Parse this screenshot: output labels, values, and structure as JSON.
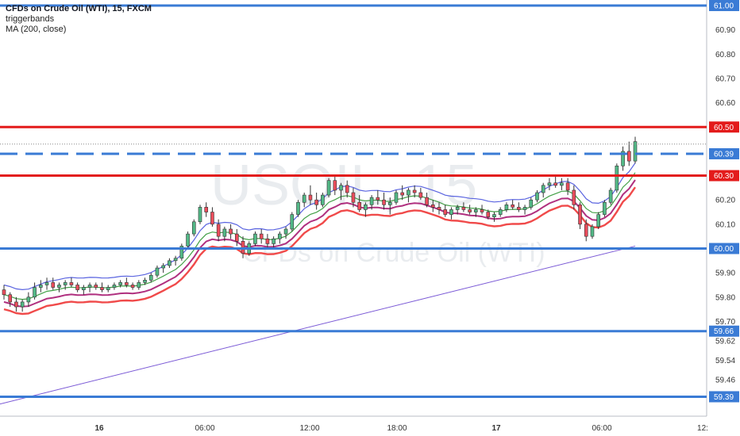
{
  "legend": {
    "title": "CFDs on Crude Oil (WTI), 15, FXCM",
    "line2": "triggerbands",
    "line3": "MA (200, close)"
  },
  "watermark": {
    "symbol": "USOIL, 15",
    "name": "CFDs on Crude Oil (WTI)"
  },
  "colors": {
    "up": "#53b987",
    "down": "#eb4d5c",
    "support": "#3a7bd5",
    "resistance": "#e31b1b",
    "ma200": "#7b5ad6",
    "band_blue": "#5a64e0",
    "band_green": "#43a047",
    "band_magenta": "#b0307f",
    "band_red": "#f04a4a"
  },
  "chart_data": {
    "type": "candlestick",
    "title": "CFDs on Crude Oil (WTI), 15, FXCM",
    "y_ticks": [
      "60.90",
      "60.80",
      "60.70",
      "60.60",
      "60.20",
      "60.10",
      "59.90",
      "59.80",
      "59.70",
      "59.62",
      "59.54",
      "59.46"
    ],
    "x_ticks": [
      "16",
      "06:00",
      "12:00",
      "18:00",
      "17",
      "06:00",
      "12:"
    ],
    "levels": [
      {
        "label": "61.00",
        "style": "solid",
        "color": "blue"
      },
      {
        "label": "60.50",
        "style": "solid",
        "color": "red"
      },
      {
        "label": "60.39",
        "style": "dashed",
        "color": "blue"
      },
      {
        "label": "60.30",
        "style": "solid",
        "color": "red"
      },
      {
        "label": "60.00",
        "style": "solid",
        "color": "blue"
      },
      {
        "label": "59.66",
        "style": "solid",
        "color": "blue"
      },
      {
        "label": "59.39",
        "style": "solid",
        "color": "blue"
      }
    ],
    "candles": [
      [
        59.83,
        59.85,
        59.79,
        59.81
      ],
      [
        59.81,
        59.82,
        59.76,
        59.78
      ],
      [
        59.78,
        59.8,
        59.74,
        59.76
      ],
      [
        59.76,
        59.79,
        59.74,
        59.78
      ],
      [
        59.78,
        59.82,
        59.76,
        59.8
      ],
      [
        59.8,
        59.86,
        59.79,
        59.84
      ],
      [
        59.84,
        59.87,
        59.82,
        59.85
      ],
      [
        59.85,
        59.88,
        59.83,
        59.86
      ],
      [
        59.86,
        59.88,
        59.83,
        59.84
      ],
      [
        59.84,
        59.86,
        59.82,
        59.85
      ],
      [
        59.85,
        59.87,
        59.83,
        59.86
      ],
      [
        59.86,
        59.88,
        59.84,
        59.85
      ],
      [
        59.85,
        59.86,
        59.82,
        59.83
      ],
      [
        59.83,
        59.85,
        59.81,
        59.84
      ],
      [
        59.84,
        59.86,
        59.82,
        59.85
      ],
      [
        59.85,
        59.86,
        59.83,
        59.84
      ],
      [
        59.84,
        59.86,
        59.82,
        59.83
      ],
      [
        59.83,
        59.85,
        59.82,
        59.84
      ],
      [
        59.84,
        59.86,
        59.83,
        59.85
      ],
      [
        59.85,
        59.87,
        59.84,
        59.86
      ],
      [
        59.86,
        59.88,
        59.84,
        59.85
      ],
      [
        59.85,
        59.86,
        59.83,
        59.84
      ],
      [
        59.84,
        59.87,
        59.83,
        59.86
      ],
      [
        59.86,
        59.88,
        59.85,
        59.87
      ],
      [
        59.87,
        59.9,
        59.86,
        59.89
      ],
      [
        59.89,
        59.93,
        59.88,
        59.92
      ],
      [
        59.92,
        59.94,
        59.9,
        59.93
      ],
      [
        59.93,
        59.96,
        59.92,
        59.95
      ],
      [
        59.95,
        59.97,
        59.93,
        59.96
      ],
      [
        59.96,
        60.02,
        59.95,
        60.01
      ],
      [
        60.01,
        60.07,
        60.0,
        60.06
      ],
      [
        60.06,
        60.12,
        60.05,
        60.11
      ],
      [
        60.11,
        60.18,
        60.1,
        60.17
      ],
      [
        60.17,
        60.19,
        60.13,
        60.15
      ],
      [
        60.15,
        60.17,
        60.09,
        60.1
      ],
      [
        60.1,
        60.12,
        60.03,
        60.05
      ],
      [
        60.05,
        60.09,
        60.03,
        60.08
      ],
      [
        60.08,
        60.1,
        60.04,
        60.06
      ],
      [
        60.06,
        60.08,
        60.01,
        60.03
      ],
      [
        60.03,
        60.05,
        59.96,
        59.98
      ],
      [
        59.98,
        60.03,
        59.97,
        60.02
      ],
      [
        60.02,
        60.07,
        60.01,
        60.06
      ],
      [
        60.06,
        60.08,
        60.02,
        60.04
      ],
      [
        60.04,
        60.06,
        60.0,
        60.02
      ],
      [
        60.02,
        60.05,
        60.0,
        60.04
      ],
      [
        60.04,
        60.07,
        60.02,
        60.06
      ],
      [
        60.06,
        60.09,
        60.04,
        60.08
      ],
      [
        60.08,
        60.15,
        60.07,
        60.14
      ],
      [
        60.14,
        60.2,
        60.13,
        60.19
      ],
      [
        60.19,
        60.23,
        60.17,
        60.22
      ],
      [
        60.22,
        60.26,
        60.18,
        60.2
      ],
      [
        60.2,
        60.23,
        60.16,
        60.18
      ],
      [
        60.18,
        60.23,
        60.17,
        60.22
      ],
      [
        60.22,
        60.29,
        60.21,
        60.28
      ],
      [
        60.28,
        60.3,
        60.22,
        60.24
      ],
      [
        60.24,
        60.27,
        60.2,
        60.26
      ],
      [
        60.26,
        60.28,
        60.21,
        60.23
      ],
      [
        60.23,
        60.25,
        60.17,
        60.19
      ],
      [
        60.19,
        60.22,
        60.15,
        60.16
      ],
      [
        60.16,
        60.19,
        60.13,
        60.18
      ],
      [
        60.18,
        60.22,
        60.16,
        60.21
      ],
      [
        60.21,
        60.24,
        60.18,
        60.2
      ],
      [
        60.2,
        60.23,
        60.16,
        60.18
      ],
      [
        60.18,
        60.21,
        60.14,
        60.19
      ],
      [
        60.19,
        60.24,
        60.18,
        60.23
      ],
      [
        60.23,
        60.26,
        60.2,
        60.22
      ],
      [
        60.22,
        60.25,
        60.19,
        60.24
      ],
      [
        60.24,
        60.26,
        60.21,
        60.23
      ],
      [
        60.23,
        60.25,
        60.2,
        60.21
      ],
      [
        60.21,
        60.23,
        60.17,
        60.18
      ],
      [
        60.18,
        60.2,
        60.15,
        60.17
      ],
      [
        60.17,
        60.19,
        60.14,
        60.16
      ],
      [
        60.16,
        60.18,
        60.13,
        60.14
      ],
      [
        60.14,
        60.17,
        60.12,
        60.16
      ],
      [
        60.16,
        60.18,
        60.14,
        60.17
      ],
      [
        60.17,
        60.19,
        60.15,
        60.16
      ],
      [
        60.16,
        60.18,
        60.14,
        60.15
      ],
      [
        60.15,
        60.17,
        60.13,
        60.16
      ],
      [
        60.16,
        60.18,
        60.14,
        60.15
      ],
      [
        60.15,
        60.16,
        60.12,
        60.13
      ],
      [
        60.13,
        60.15,
        60.11,
        60.14
      ],
      [
        60.14,
        60.17,
        60.13,
        60.16
      ],
      [
        60.16,
        60.19,
        60.15,
        60.18
      ],
      [
        60.18,
        60.2,
        60.16,
        60.17
      ],
      [
        60.17,
        60.19,
        60.15,
        60.16
      ],
      [
        60.16,
        60.18,
        60.14,
        60.17
      ],
      [
        60.17,
        60.21,
        60.16,
        60.2
      ],
      [
        60.2,
        60.24,
        60.19,
        60.23
      ],
      [
        60.23,
        60.27,
        60.21,
        60.26
      ],
      [
        60.26,
        60.29,
        60.24,
        60.27
      ],
      [
        60.27,
        60.3,
        60.25,
        60.26
      ],
      [
        60.26,
        60.29,
        60.24,
        60.27
      ],
      [
        60.27,
        60.29,
        60.22,
        60.24
      ],
      [
        60.24,
        60.26,
        60.16,
        60.18
      ],
      [
        60.18,
        60.19,
        60.08,
        60.1
      ],
      [
        60.1,
        60.12,
        60.03,
        60.05
      ],
      [
        60.05,
        60.1,
        60.04,
        60.09
      ],
      [
        60.09,
        60.15,
        60.08,
        60.14
      ],
      [
        60.14,
        60.2,
        60.13,
        60.19
      ],
      [
        60.19,
        60.25,
        60.18,
        60.24
      ],
      [
        60.24,
        60.35,
        60.23,
        60.34
      ],
      [
        60.34,
        60.42,
        60.32,
        60.4
      ],
      [
        60.4,
        60.44,
        60.34,
        60.36
      ],
      [
        60.36,
        60.46,
        60.35,
        60.44
      ]
    ],
    "ma200": {
      "start": 59.36,
      "end": 60.01
    },
    "trigger_bands": [
      {
        "name": "band-blue",
        "offset": 0.04
      },
      {
        "name": "band-green",
        "offset": 0.0
      },
      {
        "name": "band-magenta",
        "offset": -0.03
      },
      {
        "name": "band-red",
        "offset": -0.06
      }
    ]
  }
}
